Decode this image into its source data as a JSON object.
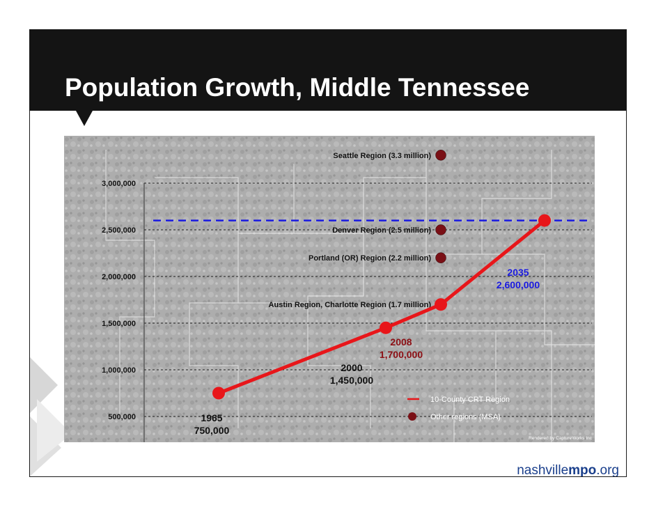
{
  "slide": {
    "title": "Population Growth, Middle Tennessee",
    "footer": {
      "prefix": "nashville",
      "bold": "mpo",
      "suffix": ".org"
    },
    "credit": "Rendered by CaptureWorks Inc"
  },
  "colors": {
    "crt_line": "#e8161a",
    "msa_marker": "#7a1016",
    "reference_line": "#1a1ae0",
    "label_2008": "#8c0f14",
    "label_2035": "#1a1ae0",
    "title_bar": "#141414",
    "footer": "#1a3f8c"
  },
  "chart_data": {
    "type": "line",
    "title": "",
    "xlabel": "",
    "ylabel": "",
    "ylim": [
      0,
      3000000
    ],
    "y_ticks": [
      {
        "value": 3000000,
        "label": "3,000,000"
      },
      {
        "value": 2500000,
        "label": "2,500,000"
      },
      {
        "value": 2000000,
        "label": "2,000,000"
      },
      {
        "value": 1500000,
        "label": "1,500,000"
      },
      {
        "value": 1000000,
        "label": "1,000,000"
      },
      {
        "value": 500000,
        "label": "500,000"
      },
      {
        "value": 0,
        "label": "-"
      }
    ],
    "grid": true,
    "series": [
      {
        "name": "10-County CRT Region",
        "points": [
          {
            "year": 1965,
            "value": 750000,
            "label_year": "1965",
            "label_value": "750,000"
          },
          {
            "year": 2000,
            "value": 1450000,
            "label_year": "2000",
            "label_value": "1,450,000"
          },
          {
            "year": 2008,
            "value": 1700000,
            "label_year": "2008",
            "label_value": "1,700,000"
          },
          {
            "year": 2035,
            "value": 2600000,
            "label_year": "2035",
            "label_value": "2,600,000"
          }
        ]
      }
    ],
    "reference_lines": [
      {
        "value": 2600000,
        "style": "dashed"
      }
    ],
    "comparison_regions": [
      {
        "label": "Seattle Region (3.3 million)",
        "value": 3300000
      },
      {
        "label": "Denver Region (2.5 million)",
        "value": 2500000
      },
      {
        "label": "Portland (OR) Region (2.2 million)",
        "value": 2200000
      },
      {
        "label": "Austin Region, Charlotte Region (1.7 million)",
        "value": 1700000
      }
    ],
    "legend": {
      "position": "bottom-right",
      "items": [
        {
          "label": "10-County CRT Region",
          "symbol": "line"
        },
        {
          "label": "Other regions (MSA)",
          "symbol": "dot"
        }
      ]
    }
  }
}
